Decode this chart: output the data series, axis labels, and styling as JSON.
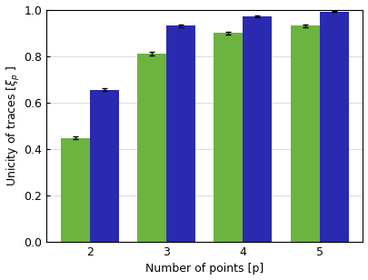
{
  "categories": [
    2,
    3,
    4,
    5
  ],
  "green_values": [
    0.448,
    0.812,
    0.9,
    0.93
  ],
  "blue_values": [
    0.655,
    0.93,
    0.972,
    0.992
  ],
  "green_errors": [
    0.007,
    0.008,
    0.006,
    0.005
  ],
  "blue_errors": [
    0.006,
    0.005,
    0.004,
    0.003
  ],
  "green_color": "#6db33f",
  "blue_color": "#2a2ab0",
  "xlabel": "Number of points [p]",
  "ylabel": "Unicity of traces [$\\xi_p$ ]",
  "ylim": [
    0.0,
    1.0
  ],
  "yticks": [
    0.0,
    0.2,
    0.4,
    0.6,
    0.8,
    1.0
  ],
  "bar_width": 0.38,
  "background_color": "#ffffff",
  "axes_background": "#ffffff"
}
